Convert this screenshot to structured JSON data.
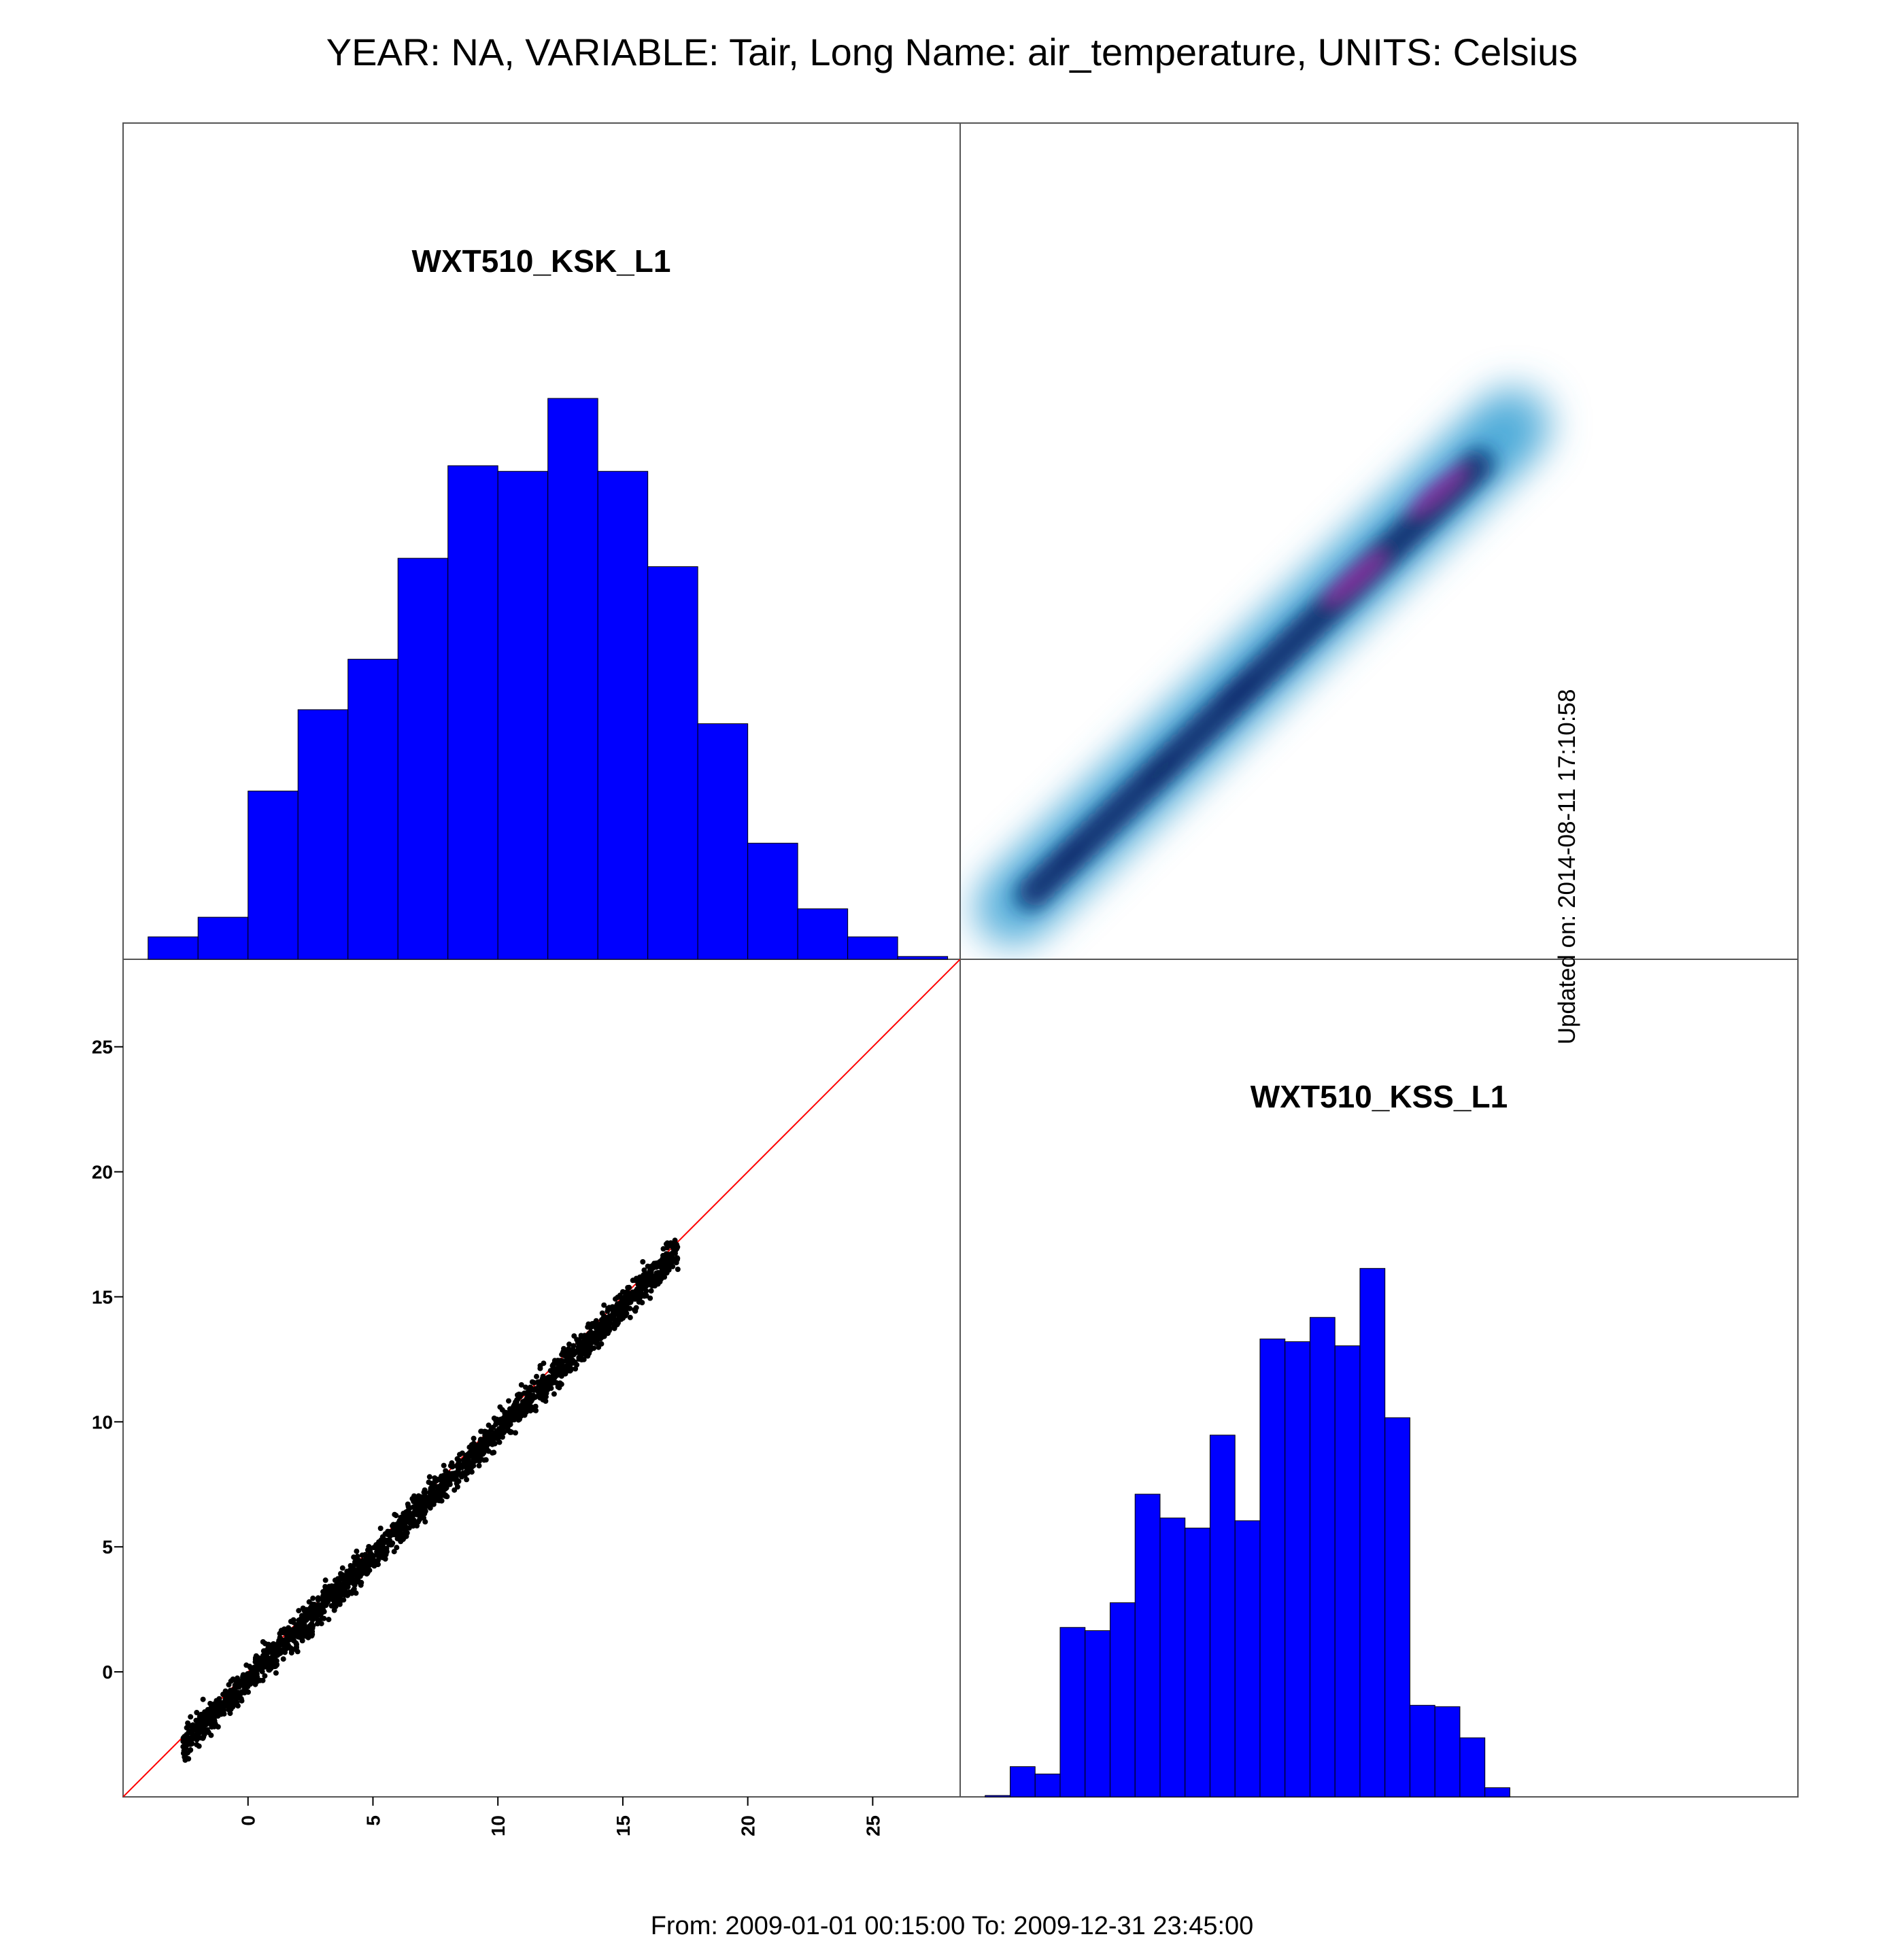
{
  "title": "YEAR: NA, VARIABLE: Tair, Long Name: air_temperature, UNITS: Celsius",
  "footer": "From: 2009-01-01 00:15:00 To: 2009-12-31 23:45:00",
  "updated": "Updated on: 2014-08-11 17:10:58",
  "colors": {
    "bars": "#0000ff",
    "bar_edge": "#000000",
    "points": "#000000",
    "identity_line": "#ff0000",
    "density_low": "#4aa9d8",
    "density_mid": "#0b2a6b",
    "density_high": "#8e2fa1"
  },
  "chart_data": [
    {
      "type": "bar",
      "subtype": "histogram",
      "panel": "top-left",
      "title": "WXT510_KSK_L1",
      "bin_edges": [
        -4,
        -2,
        0,
        2,
        4,
        6,
        8,
        10,
        12,
        14,
        16,
        18,
        20,
        22,
        24,
        26,
        28
      ],
      "values": [
        0.04,
        0.075,
        0.3,
        0.445,
        0.535,
        0.715,
        0.88,
        0.87,
        1.0,
        0.87,
        0.7,
        0.42,
        0.207,
        0.09,
        0.04,
        0.005
      ],
      "ylim": [
        0,
        1.08
      ]
    },
    {
      "type": "heatmap",
      "subtype": "smoothed density scatter",
      "panel": "top-right",
      "x_range": [
        -3,
        17.2
      ],
      "y_range": [
        -3,
        16.5
      ],
      "density_peaks": [
        {
          "x": 10.8,
          "y": 10.3,
          "level": 1.0
        },
        {
          "x": 14.1,
          "y": 13.8,
          "level": 0.9
        },
        {
          "x": 6.1,
          "y": 5.8,
          "level": 0.55
        },
        {
          "x": 3.0,
          "y": 2.6,
          "level": 0.4
        },
        {
          "x": -0.6,
          "y": -0.8,
          "level": 0.25
        }
      ]
    },
    {
      "type": "scatter",
      "panel": "bottom-left",
      "xlim": [
        -5,
        28.5
      ],
      "ylim": [
        -5,
        28.5
      ],
      "x_ticks": [
        0,
        5,
        10,
        15,
        20,
        25
      ],
      "y_ticks": [
        0,
        5,
        10,
        15,
        20,
        25
      ],
      "identity_line": true,
      "trend": {
        "x_min": -2.6,
        "x_max": 17.2,
        "slope": 1.0,
        "offset": -0.35,
        "spread": 0.45
      },
      "sample_points": [
        [
          -2.5,
          -2.9
        ],
        [
          -2.3,
          -1.8
        ],
        [
          -1.8,
          -1.1
        ],
        [
          -1.0,
          -0.9
        ],
        [
          0.0,
          -0.2
        ],
        [
          0.6,
          1.2
        ],
        [
          1.0,
          0.3
        ],
        [
          2.0,
          1.4
        ],
        [
          3.0,
          2.5
        ],
        [
          4.0,
          3.4
        ],
        [
          5.0,
          4.6
        ],
        [
          6.0,
          5.7
        ],
        [
          7.0,
          6.6
        ],
        [
          8.0,
          7.8
        ],
        [
          9.0,
          8.7
        ],
        [
          10.0,
          9.6
        ],
        [
          11.0,
          10.8
        ],
        [
          12.0,
          11.5
        ],
        [
          13.0,
          12.9
        ],
        [
          14.0,
          13.5
        ],
        [
          15.0,
          15.2
        ],
        [
          15.8,
          16.4
        ],
        [
          16.2,
          15.6
        ],
        [
          17.2,
          16.1
        ]
      ]
    },
    {
      "type": "bar",
      "subtype": "histogram",
      "panel": "bottom-right",
      "title": "WXT510_KSS_L1",
      "bin_edges": [
        -4,
        -3,
        -2,
        -1,
        0,
        1,
        2,
        3,
        4,
        5,
        6,
        7,
        8,
        9,
        10,
        11,
        12,
        13,
        14,
        15,
        16,
        17
      ],
      "values": [
        0.003,
        0.066,
        0.05,
        0.37,
        0.363,
        0.424,
        0.661,
        0.609,
        0.587,
        0.79,
        0.603,
        1.0,
        0.994,
        1.047,
        0.985,
        1.154,
        0.828,
        0.2,
        0.197,
        0.129,
        0.02
      ],
      "ylim": [
        0,
        1.4
      ]
    }
  ]
}
